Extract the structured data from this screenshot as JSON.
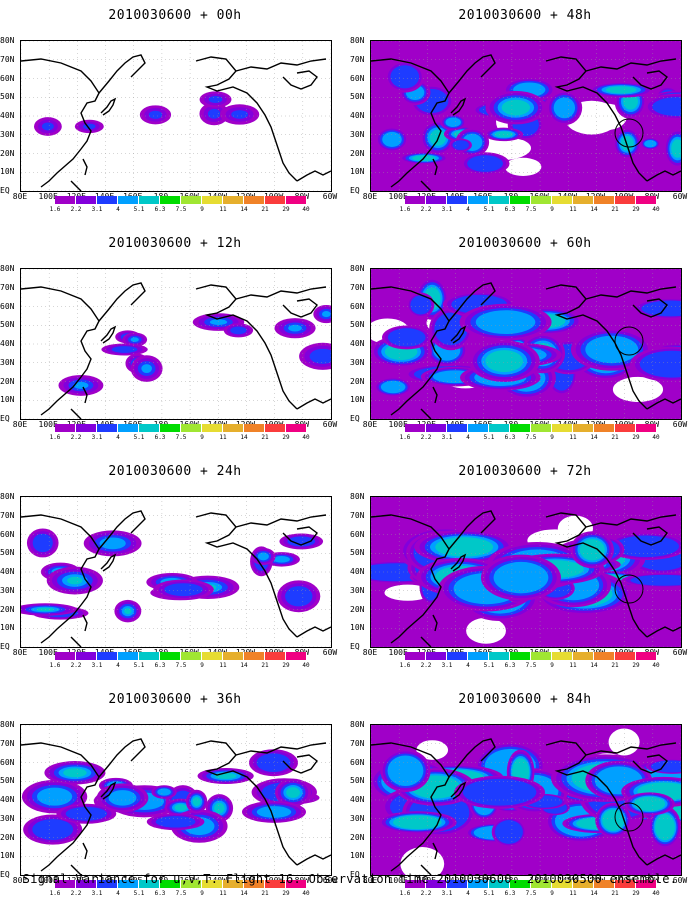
{
  "caption": "Signal Variance for u,v,T. Flight 16. Observation time 2010030600. 2010030500 ensemble.",
  "lat_labels": [
    "80N",
    "70N",
    "60N",
    "50N",
    "40N",
    "30N",
    "20N",
    "10N",
    "EQ"
  ],
  "lon_labels": [
    "80E",
    "100E",
    "120E",
    "140E",
    "160E",
    "180",
    "160W",
    "140W",
    "120W",
    "100W",
    "80W",
    "60W"
  ],
  "colorbar": {
    "ticks": [
      "1.6",
      "2.2",
      "3.1",
      "4",
      "5.1",
      "6.3",
      "7.5",
      "9",
      "11",
      "14",
      "21",
      "29",
      "40"
    ],
    "colors": [
      "#a000c8",
      "#8200dc",
      "#1e3cff",
      "#00a0ff",
      "#00c8c8",
      "#00dc00",
      "#a0e632",
      "#e6dc32",
      "#e6af2d",
      "#f08228",
      "#fa3c3c",
      "#f00082"
    ]
  },
  "panels": [
    {
      "title": "2010030600 + 00h",
      "level": 0
    },
    {
      "title": "2010030600 + 48h",
      "level": 4
    },
    {
      "title": "2010030600 + 12h",
      "level": 1
    },
    {
      "title": "2010030600 + 60h",
      "level": 5
    },
    {
      "title": "2010030600 + 24h",
      "level": 2
    },
    {
      "title": "2010030600 + 72h",
      "level": 6
    },
    {
      "title": "2010030600 + 36h",
      "level": 3
    },
    {
      "title": "2010030600 + 84h",
      "level": 7
    }
  ]
}
